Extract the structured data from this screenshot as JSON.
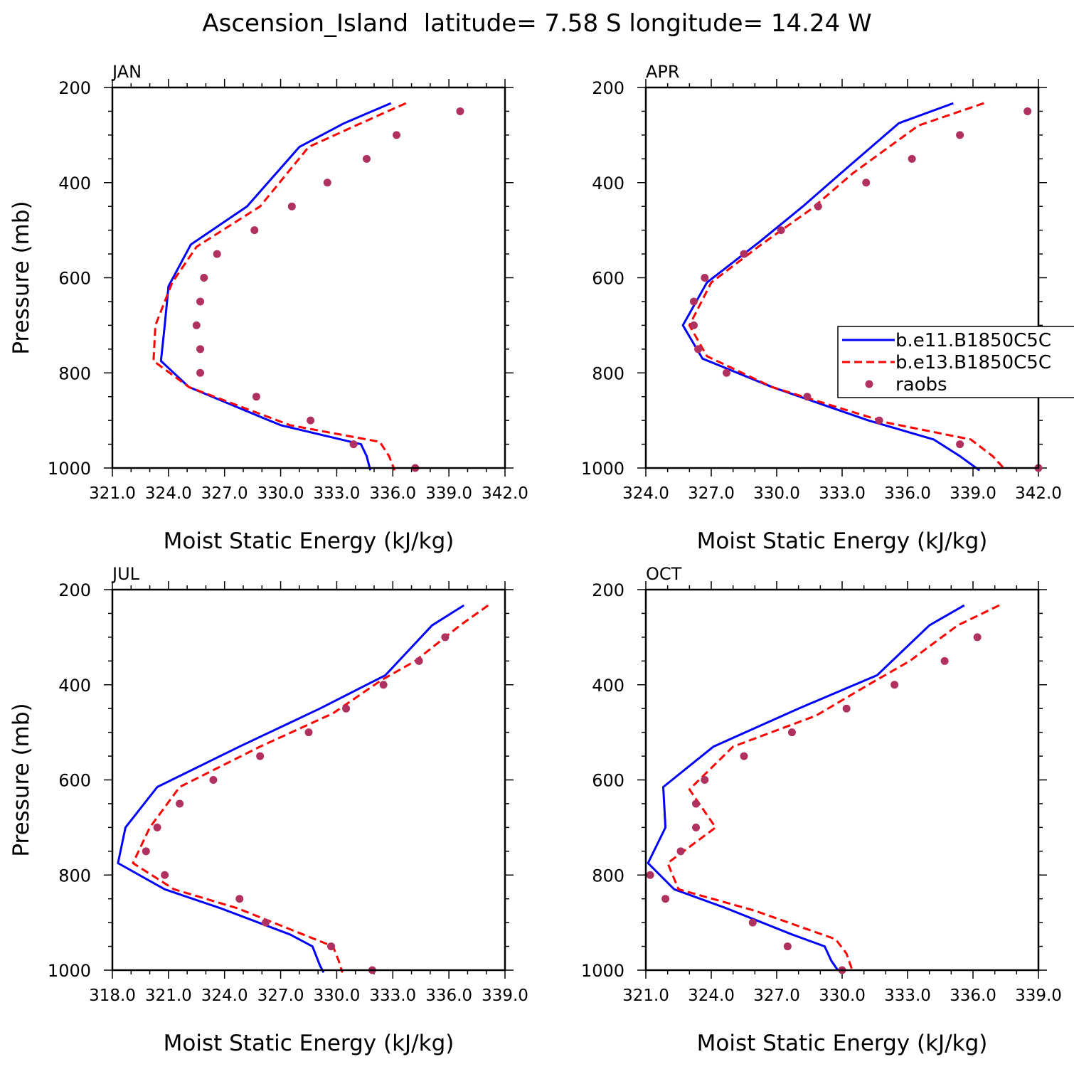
{
  "figure": {
    "title": "Ascension_Island  latitude= 7.58 S longitude= 14.24 W",
    "legend": {
      "entries": [
        "b.e11.B1850C5C",
        "b.e13.B1850C5C",
        "raobs"
      ],
      "colors": [
        "#0000ff",
        "#ff0000",
        "#b03060"
      ],
      "placement": "right edge of APR panel"
    }
  },
  "chart_data": [
    {
      "type": "line",
      "panel_label": "JAN",
      "xlabel": "Moist Static Energy (kJ/kg)",
      "ylabel": "Pressure (mb)",
      "xlim": [
        321.0,
        342.0
      ],
      "xticks": [
        "321.0",
        "324.0",
        "327.0",
        "330.0",
        "333.0",
        "336.0",
        "339.0",
        "342.0"
      ],
      "ylim": [
        200,
        1000
      ],
      "y_inverted": true,
      "yticks": [
        "200",
        "400",
        "600",
        "800",
        "1000"
      ],
      "series": [
        {
          "name": "b.e11.B1850C5C",
          "style": "solid",
          "color": "#0000ff",
          "points": [
            [
              335.9,
              233
            ],
            [
              333.4,
              275
            ],
            [
              331.0,
              325
            ],
            [
              328.2,
              450
            ],
            [
              325.2,
              530
            ],
            [
              324.0,
              618
            ],
            [
              323.8,
              700
            ],
            [
              323.6,
              775
            ],
            [
              325.1,
              830
            ],
            [
              330.0,
              910
            ],
            [
              334.3,
              950
            ],
            [
              334.6,
              975
            ],
            [
              334.8,
              1005
            ]
          ]
        },
        {
          "name": "b.e13.B1850C5C",
          "style": "dashed",
          "color": "#ff0000",
          "points": [
            [
              336.7,
              233
            ],
            [
              334.3,
              275
            ],
            [
              331.5,
              325
            ],
            [
              328.9,
              450
            ],
            [
              325.5,
              535
            ],
            [
              324.2,
              610
            ],
            [
              323.3,
              700
            ],
            [
              323.2,
              775
            ],
            [
              325.1,
              830
            ],
            [
              330.5,
              910
            ],
            [
              335.3,
              945
            ],
            [
              335.8,
              975
            ],
            [
              336.1,
              1005
            ]
          ]
        },
        {
          "name": "raobs",
          "style": "markers",
          "color": "#b03060",
          "points": [
            [
              339.6,
              250
            ],
            [
              336.2,
              300
            ],
            [
              334.6,
              350
            ],
            [
              332.5,
              400
            ],
            [
              330.6,
              450
            ],
            [
              328.6,
              500
            ],
            [
              326.6,
              550
            ],
            [
              325.9,
              600
            ],
            [
              325.7,
              650
            ],
            [
              325.5,
              700
            ],
            [
              325.7,
              750
            ],
            [
              325.7,
              800
            ],
            [
              328.7,
              850
            ],
            [
              331.6,
              900
            ],
            [
              333.9,
              950
            ],
            [
              337.2,
              1000
            ]
          ]
        }
      ]
    },
    {
      "type": "line",
      "panel_label": "APR",
      "xlabel": "Moist Static Energy (kJ/kg)",
      "ylabel": "",
      "xlim": [
        324.0,
        342.0
      ],
      "xticks": [
        "324.0",
        "327.0",
        "330.0",
        "333.0",
        "336.0",
        "339.0",
        "342.0"
      ],
      "ylim": [
        200,
        1000
      ],
      "y_inverted": true,
      "yticks": [
        "200",
        "400",
        "600",
        "800",
        "1000"
      ],
      "series": [
        {
          "name": "b.e11.B1850C5C",
          "style": "solid",
          "color": "#0000ff",
          "points": [
            [
              338.1,
              233
            ],
            [
              335.6,
              275
            ],
            [
              333.2,
              370
            ],
            [
              331.2,
              450
            ],
            [
              329.2,
              525
            ],
            [
              326.8,
              610
            ],
            [
              325.7,
              700
            ],
            [
              326.6,
              770
            ],
            [
              329.8,
              830
            ],
            [
              334.2,
              900
            ],
            [
              337.2,
              940
            ],
            [
              338.4,
              975
            ],
            [
              339.3,
              1005
            ]
          ]
        },
        {
          "name": "b.e13.B1850C5C",
          "style": "dashed",
          "color": "#ff0000",
          "points": [
            [
              339.5,
              233
            ],
            [
              336.5,
              280
            ],
            [
              333.5,
              380
            ],
            [
              331.6,
              455
            ],
            [
              329.3,
              530
            ],
            [
              327.0,
              610
            ],
            [
              326.0,
              700
            ],
            [
              326.8,
              765
            ],
            [
              329.8,
              830
            ],
            [
              335.1,
              905
            ],
            [
              338.9,
              940
            ],
            [
              339.9,
              975
            ],
            [
              340.5,
              1005
            ]
          ]
        },
        {
          "name": "raobs",
          "style": "markers",
          "color": "#b03060",
          "points": [
            [
              341.5,
              250
            ],
            [
              338.4,
              300
            ],
            [
              336.2,
              350
            ],
            [
              334.1,
              400
            ],
            [
              331.9,
              450
            ],
            [
              330.2,
              500
            ],
            [
              328.5,
              550
            ],
            [
              326.7,
              600
            ],
            [
              326.2,
              650
            ],
            [
              326.2,
              700
            ],
            [
              326.4,
              750
            ],
            [
              327.7,
              800
            ],
            [
              331.4,
              850
            ],
            [
              334.7,
              900
            ],
            [
              338.4,
              950
            ],
            [
              342.0,
              1000
            ]
          ]
        }
      ]
    },
    {
      "type": "line",
      "panel_label": "JUL",
      "xlabel": "Moist Static Energy (kJ/kg)",
      "ylabel": "Pressure (mb)",
      "xlim": [
        318.0,
        339.0
      ],
      "xticks": [
        "318.0",
        "321.0",
        "324.0",
        "327.0",
        "330.0",
        "333.0",
        "336.0",
        "339.0"
      ],
      "ylim": [
        200,
        1000
      ],
      "y_inverted": true,
      "yticks": [
        "200",
        "400",
        "600",
        "800",
        "1000"
      ],
      "series": [
        {
          "name": "b.e11.B1850C5C",
          "style": "solid",
          "color": "#0000ff",
          "points": [
            [
              336.8,
              233
            ],
            [
              335.1,
              275
            ],
            [
              332.6,
              380
            ],
            [
              329.1,
              450
            ],
            [
              324.8,
              530
            ],
            [
              320.4,
              615
            ],
            [
              318.7,
              700
            ],
            [
              318.3,
              775
            ],
            [
              320.8,
              830
            ],
            [
              323.8,
              870
            ],
            [
              327.5,
              925
            ],
            [
              328.7,
              950
            ],
            [
              329.1,
              990
            ],
            [
              329.3,
              1005
            ]
          ]
        },
        {
          "name": "b.e13.B1850C5C",
          "style": "dashed",
          "color": "#ff0000",
          "points": [
            [
              338.1,
              233
            ],
            [
              336.6,
              275
            ],
            [
              334.2,
              350
            ],
            [
              332.4,
              390
            ],
            [
              329.8,
              460
            ],
            [
              325.9,
              530
            ],
            [
              321.6,
              615
            ],
            [
              320.0,
              700
            ],
            [
              319.1,
              775
            ],
            [
              321.3,
              830
            ],
            [
              324.7,
              870
            ],
            [
              328.2,
              925
            ],
            [
              329.8,
              950
            ],
            [
              330.1,
              980
            ],
            [
              330.3,
              1005
            ]
          ]
        },
        {
          "name": "raobs",
          "style": "markers",
          "color": "#b03060",
          "points": [
            [
              335.8,
              300
            ],
            [
              334.4,
              350
            ],
            [
              332.5,
              400
            ],
            [
              330.5,
              450
            ],
            [
              328.5,
              500
            ],
            [
              325.9,
              550
            ],
            [
              323.4,
              600
            ],
            [
              321.6,
              650
            ],
            [
              320.4,
              700
            ],
            [
              319.8,
              750
            ],
            [
              320.8,
              800
            ],
            [
              324.8,
              850
            ],
            [
              326.2,
              900
            ],
            [
              329.7,
              950
            ],
            [
              331.9,
              1000
            ]
          ]
        }
      ]
    },
    {
      "type": "line",
      "panel_label": "OCT",
      "xlabel": "Moist Static Energy (kJ/kg)",
      "ylabel": "",
      "xlim": [
        321.0,
        339.0
      ],
      "xticks": [
        "321.0",
        "324.0",
        "327.0",
        "330.0",
        "333.0",
        "336.0",
        "339.0"
      ],
      "ylim": [
        200,
        1000
      ],
      "y_inverted": true,
      "yticks": [
        "200",
        "400",
        "600",
        "800",
        "1000"
      ],
      "series": [
        {
          "name": "b.e11.B1850C5C",
          "style": "solid",
          "color": "#0000ff",
          "points": [
            [
              335.6,
              233
            ],
            [
              334.0,
              275
            ],
            [
              331.6,
              380
            ],
            [
              328.0,
              450
            ],
            [
              324.1,
              530
            ],
            [
              321.8,
              615
            ],
            [
              321.9,
              700
            ],
            [
              321.1,
              775
            ],
            [
              322.3,
              830
            ],
            [
              324.7,
              870
            ],
            [
              327.7,
              925
            ],
            [
              329.2,
              950
            ],
            [
              329.5,
              980
            ],
            [
              329.8,
              1000
            ]
          ]
        },
        {
          "name": "b.e13.B1850C5C",
          "style": "dashed",
          "color": "#ff0000",
          "points": [
            [
              337.2,
              233
            ],
            [
              335.3,
              275
            ],
            [
              333.1,
              350
            ],
            [
              331.2,
              400
            ],
            [
              328.8,
              465
            ],
            [
              325.0,
              530
            ],
            [
              323.0,
              620
            ],
            [
              324.2,
              700
            ],
            [
              322.0,
              775
            ],
            [
              322.5,
              830
            ],
            [
              326.0,
              875
            ],
            [
              329.7,
              935
            ],
            [
              330.2,
              965
            ],
            [
              330.5,
              1005
            ]
          ]
        },
        {
          "name": "raobs",
          "style": "markers",
          "color": "#b03060",
          "points": [
            [
              336.2,
              300
            ],
            [
              334.7,
              350
            ],
            [
              332.4,
              400
            ],
            [
              330.2,
              450
            ],
            [
              327.7,
              500
            ],
            [
              325.5,
              550
            ],
            [
              323.7,
              600
            ],
            [
              323.3,
              650
            ],
            [
              323.3,
              700
            ],
            [
              322.6,
              750
            ],
            [
              321.2,
              800
            ],
            [
              321.9,
              850
            ],
            [
              325.9,
              900
            ],
            [
              327.5,
              950
            ],
            [
              330.0,
              1000
            ]
          ]
        }
      ]
    }
  ]
}
